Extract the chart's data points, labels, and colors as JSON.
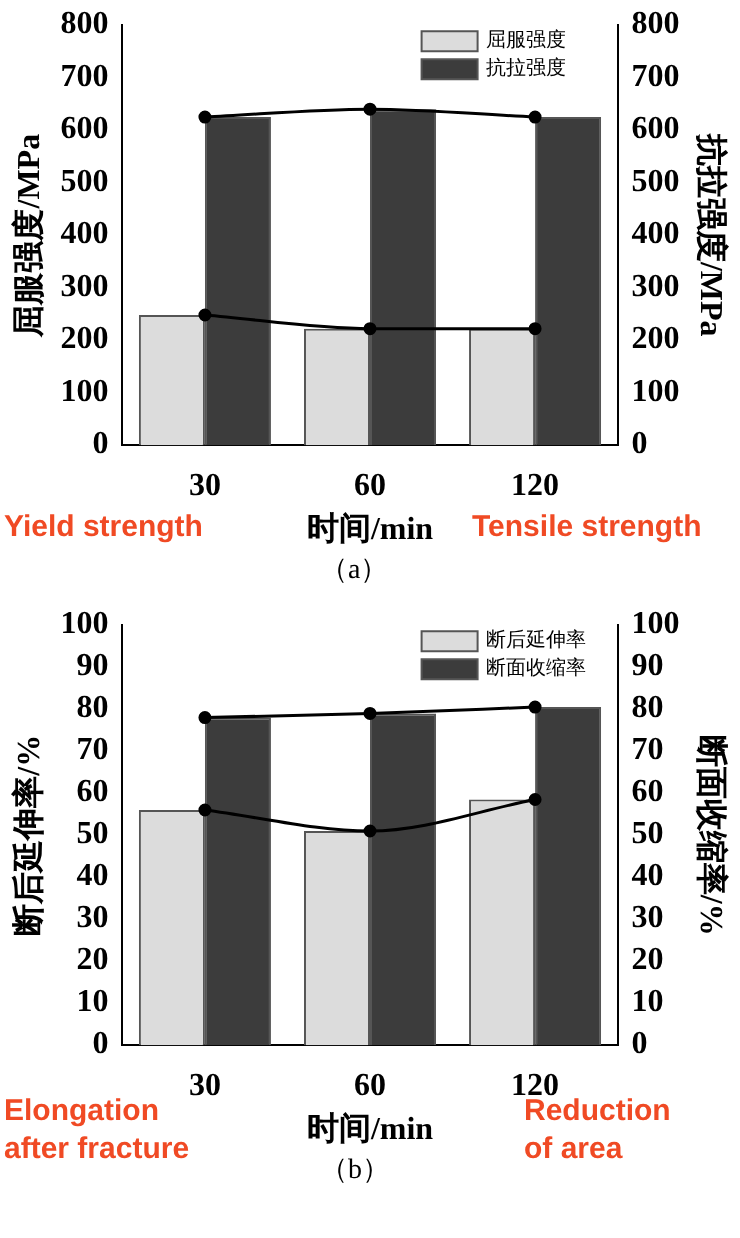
{
  "chart_data": [
    {
      "type": "bar",
      "categories": [
        "30",
        "60",
        "120"
      ],
      "xlabel": "时间/min",
      "ylabel": "屈服强度/MPa",
      "y2label": "抗拉强度/MPa",
      "ylim": [
        0,
        800
      ],
      "yticks": [
        0,
        100,
        200,
        300,
        400,
        500,
        600,
        700,
        800
      ],
      "y2lim": [
        0,
        800
      ],
      "y2ticks": [
        0,
        100,
        200,
        300,
        400,
        500,
        600,
        700,
        800
      ],
      "legend": "top right",
      "grid": false,
      "marker": "circle",
      "series": [
        {
          "name": "屈服强度",
          "color": "#dcdcdc",
          "values": [
            248,
            222,
            222
          ]
        },
        {
          "name": "抗拉强度",
          "color": "#3c3c3c",
          "values": [
            625,
            640,
            625
          ]
        },
        {
          "type": "line",
          "color": "#000000",
          "values": [
            248,
            222,
            222
          ]
        },
        {
          "type": "line",
          "color": "#000000",
          "values": [
            625,
            640,
            625
          ]
        }
      ],
      "annotations": [
        "Yield strength",
        "Tensile strength",
        "（a）"
      ]
    },
    {
      "type": "bar",
      "categories": [
        "30",
        "60",
        "120"
      ],
      "xlabel": "时间/min",
      "ylabel": "断后延伸率/%",
      "y2label": "断面收缩率/%",
      "ylim": [
        0,
        100
      ],
      "yticks": [
        0,
        10,
        20,
        30,
        40,
        50,
        60,
        70,
        80,
        90,
        100
      ],
      "y2lim": [
        0,
        100
      ],
      "y2ticks": [
        0,
        10,
        20,
        30,
        40,
        50,
        60,
        70,
        80,
        90,
        100
      ],
      "legend": "top right",
      "grid": false,
      "marker": "circle",
      "series": [
        {
          "name": "断后延伸率",
          "color": "#dcdcdc",
          "values": [
            56,
            51,
            58.5
          ]
        },
        {
          "name": "断面收缩率",
          "color": "#3c3c3c",
          "values": [
            78,
            79,
            80.5
          ]
        },
        {
          "type": "line",
          "color": "#000000",
          "values": [
            56,
            51,
            58.5
          ]
        },
        {
          "type": "line",
          "color": "#000000",
          "values": [
            78,
            79,
            80.5
          ]
        }
      ],
      "annotations": [
        "Elongation\nafter fracture",
        "Reduction\nof area",
        "（b）"
      ]
    }
  ]
}
